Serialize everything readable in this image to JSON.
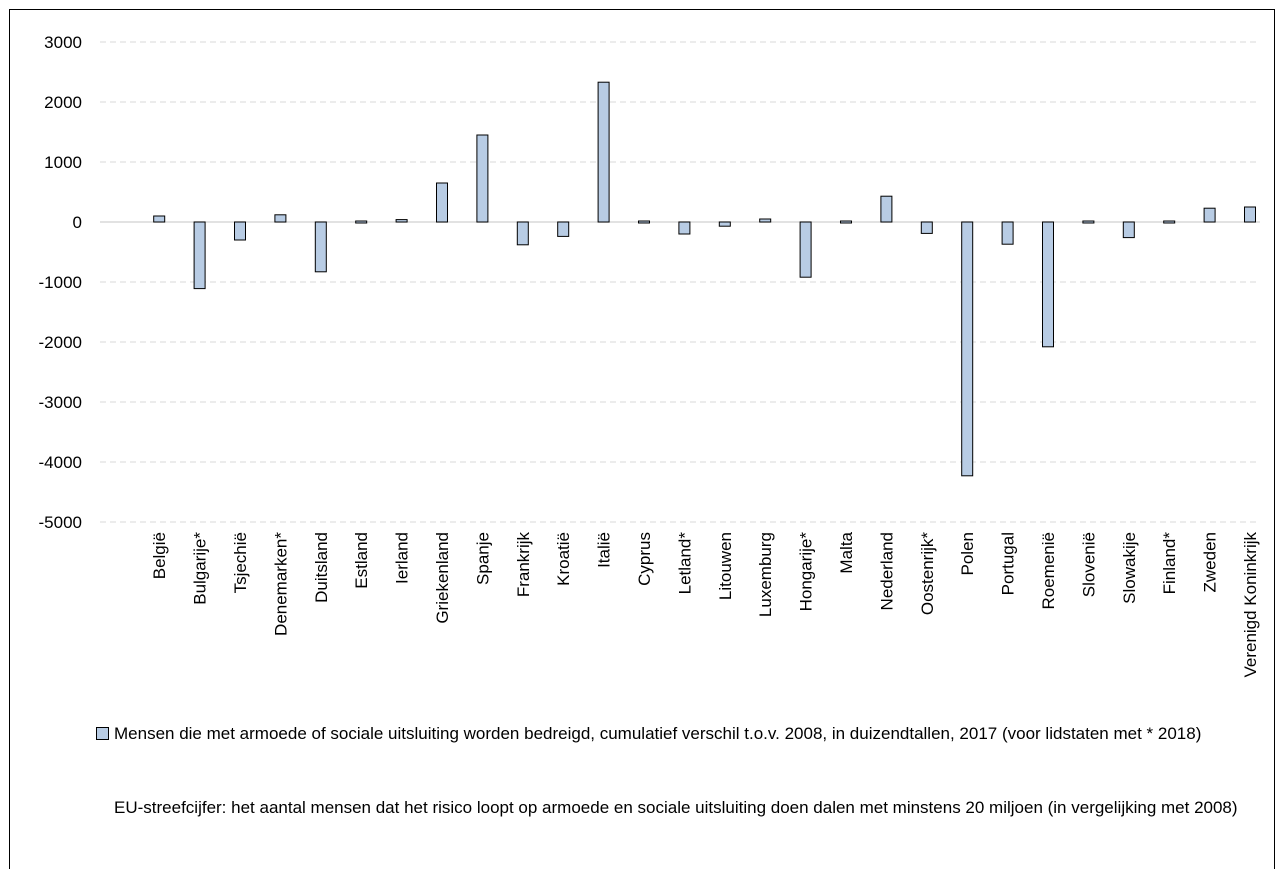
{
  "chart_data": {
    "type": "bar",
    "categories": [
      "België",
      "Bulgarije*",
      "Tsjechië",
      "Denemarken*",
      "Duitsland",
      "Estland",
      "Ierland",
      "Griekenland",
      "Spanje",
      "Frankrijk",
      "Kroatië",
      "Italië",
      "Cyprus",
      "Letland*",
      "Litouwen",
      "Luxemburg",
      "Hongarije*",
      "Malta",
      "Nederland",
      "Oostenrijk*",
      "Polen",
      "Portugal",
      "Roemenië",
      "Slovenië",
      "Slowakije",
      "Finland*",
      "Zweden",
      "Verenigd Koninkrijk"
    ],
    "series": [
      {
        "name": "Mensen die met armoede of sociale uitsluiting worden bedreigd, cumulatief verschil t.o.v. 2008, in duizendtallen, 2017 (voor lidstaten met * 2018)",
        "values": [
          100,
          -1110,
          -300,
          120,
          -830,
          15,
          40,
          650,
          1450,
          -380,
          -240,
          2330,
          30,
          -200,
          -70,
          50,
          -920,
          -10,
          430,
          -190,
          -4230,
          -370,
          -2080,
          -25,
          -260,
          -30,
          230,
          250
        ]
      }
    ],
    "ylim": [
      -5000,
      3000
    ],
    "yticks": [
      3000,
      2000,
      1000,
      0,
      -1000,
      -2000,
      -3000,
      -4000,
      -5000
    ],
    "grid": true,
    "legend_position": "bottom",
    "bar_color": "#b8cce4",
    "bar_stroke": "#000000",
    "grid_color": "#d9d9d9"
  },
  "note": "EU-streefcijfer: het aantal mensen dat het risico loopt op armoede en sociale uitsluiting doen dalen met minstens 20 miljoen (in vergelijking met 2008)"
}
